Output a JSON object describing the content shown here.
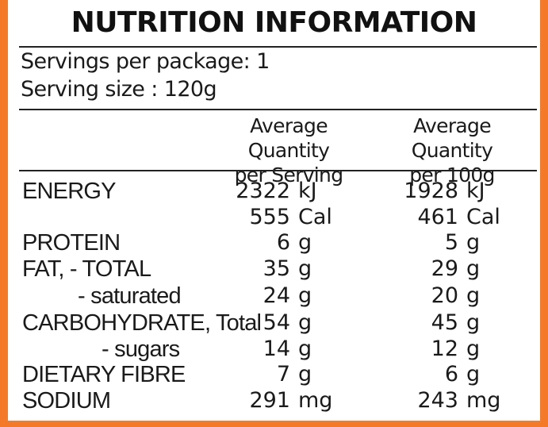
{
  "title": "NUTRITION INFORMATION",
  "servings_per_package": "Servings per package: 1",
  "serving_size": "Serving size : 120g",
  "columns": {
    "per_serving": [
      "Average Quantity",
      "per Serving"
    ],
    "per_100g": [
      "Average Quantity",
      "per 100g"
    ]
  },
  "rows": [
    {
      "label": "ENERGY",
      "serving": "2322",
      "serving_unit": "kJ",
      "per100": "1928",
      "per100_unit": "kJ"
    },
    {
      "label": "",
      "serving": "555",
      "serving_unit": "Cal",
      "per100": "461",
      "per100_unit": "Cal"
    },
    {
      "label": "PROTEIN",
      "serving": "6",
      "serving_unit": "g",
      "per100": "5",
      "per100_unit": "g"
    },
    {
      "label": "FAT, - TOTAL",
      "serving": "35",
      "serving_unit": "g",
      "per100": "29",
      "per100_unit": "g"
    },
    {
      "label": "- saturated",
      "serving": "24",
      "serving_unit": "g",
      "per100": "20",
      "per100_unit": "g"
    },
    {
      "label": "CARBOHYDRATE, Total",
      "serving": "54",
      "serving_unit": "g",
      "per100": "45",
      "per100_unit": "g"
    },
    {
      "label": "- sugars",
      "serving": "14",
      "serving_unit": "g",
      "per100": "12",
      "per100_unit": "g"
    },
    {
      "label": "DIETARY FIBRE",
      "serving": "7",
      "serving_unit": "g",
      "per100": "6",
      "per100_unit": "g"
    },
    {
      "label": "SODIUM",
      "serving": "291",
      "serving_unit": "mg",
      "per100": "243",
      "per100_unit": "mg"
    }
  ],
  "colors": {
    "border": "#f47a2a",
    "text": "#1a1a1a"
  }
}
